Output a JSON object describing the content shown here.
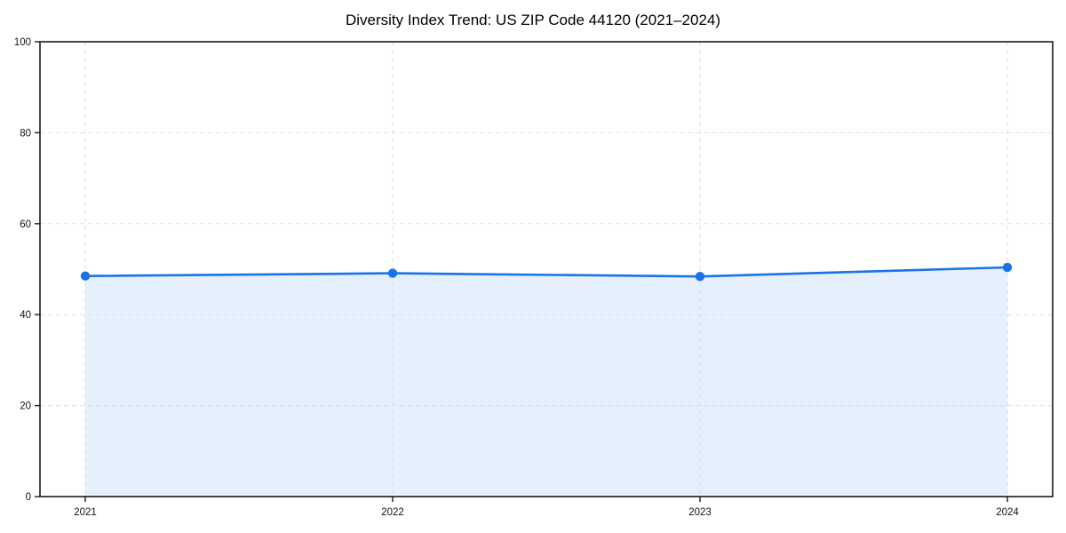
{
  "chart_data": {
    "type": "line",
    "title": "Diversity Index Trend: US ZIP Code 44120 (2021–2024)",
    "categories": [
      "2021",
      "2022",
      "2023",
      "2024"
    ],
    "series": [
      {
        "name": "Diversity Index",
        "values": [
          48.5,
          49.1,
          48.4,
          50.4
        ]
      }
    ],
    "xlabel": "",
    "ylabel": "",
    "ylim": [
      0,
      100
    ],
    "yticks": [
      0,
      20,
      40,
      60,
      80,
      100
    ],
    "grid": "dashed",
    "legend_position": "none",
    "marker": "circle",
    "area_fill": true,
    "colors": {
      "line": "#1a73e8",
      "marker": "#1a73e8",
      "area": "#1a73e8",
      "area_opacity": 0.11,
      "grid": "#d9d9d9",
      "spine": "#1a1a1a",
      "tick_text": "#111111"
    }
  }
}
